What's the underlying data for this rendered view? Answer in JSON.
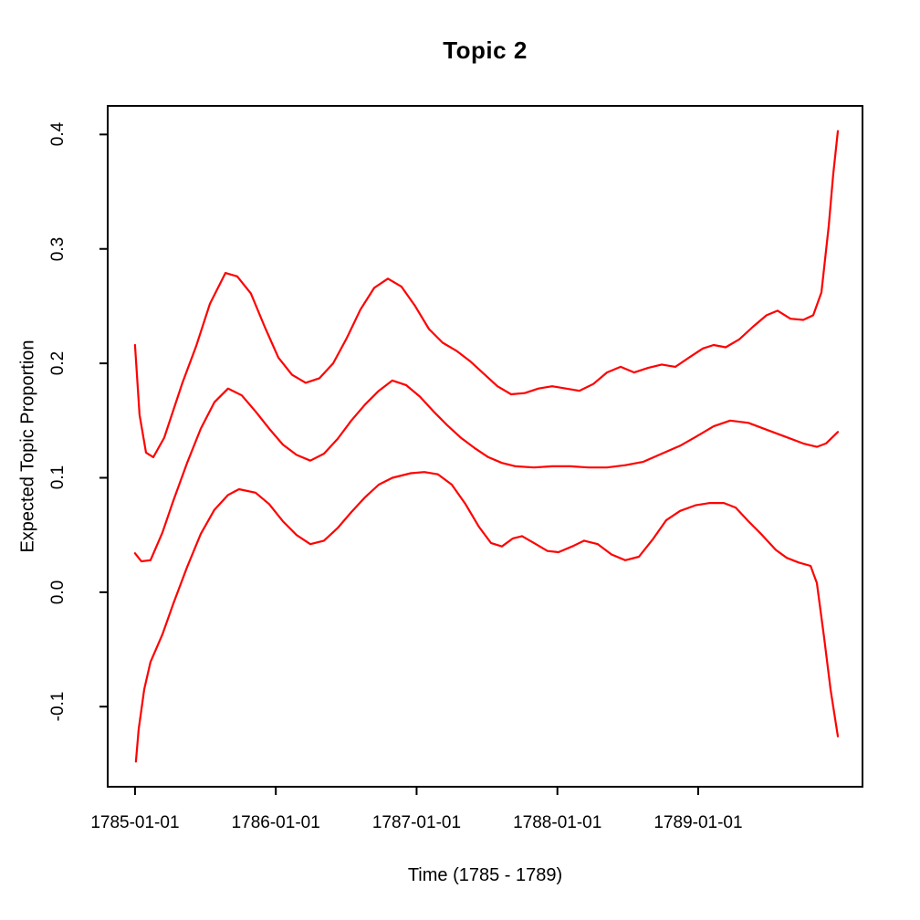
{
  "figure": {
    "background": "#FFFFFF"
  },
  "chart_data": {
    "type": "line",
    "title": "Topic 2",
    "xlabel": "Time (1785 - 1789)",
    "ylabel": "Expected Topic Proportion",
    "grid": false,
    "legend": null,
    "line_color": "#FF0000",
    "axis_color": "#000000",
    "x_axis": {
      "tick_labels": [
        "1785-01-01",
        "1786-01-01",
        "1787-01-01",
        "1788-01-01",
        "1789-01-01"
      ],
      "tick_years": [
        1785,
        1786,
        1787,
        1788,
        1789
      ],
      "range": [
        1784.806,
        1790.167
      ]
    },
    "y_axis": {
      "tick_labels": [
        "-0.1",
        "0.0",
        "0.1",
        "0.2",
        "0.3",
        "0.4"
      ],
      "tick_values": [
        -0.1,
        0.0,
        0.1,
        0.2,
        0.3,
        0.4
      ],
      "range": [
        -0.17,
        0.425
      ]
    },
    "series": [
      {
        "name": "upper-confidence-band",
        "x": [
          1785.0,
          1785.032,
          1785.078,
          1785.13,
          1785.207,
          1785.337,
          1785.434,
          1785.532,
          1785.642,
          1785.726,
          1785.823,
          1785.921,
          1786.018,
          1786.115,
          1786.212,
          1786.31,
          1786.407,
          1786.504,
          1786.601,
          1786.699,
          1786.796,
          1786.893,
          1786.99,
          1787.088,
          1787.185,
          1787.282,
          1787.379,
          1787.477,
          1787.574,
          1787.671,
          1787.768,
          1787.866,
          1787.963,
          1788.06,
          1788.157,
          1788.255,
          1788.352,
          1788.449,
          1788.546,
          1788.644,
          1788.741,
          1788.838,
          1788.935,
          1789.033,
          1789.11,
          1789.195,
          1789.292,
          1789.389,
          1789.486,
          1789.564,
          1789.655,
          1789.746,
          1789.817,
          1789.875,
          1789.927,
          1789.959,
          1789.992
        ],
        "y": [
          0.216,
          0.155,
          0.122,
          0.118,
          0.135,
          0.183,
          0.215,
          0.252,
          0.279,
          0.276,
          0.261,
          0.232,
          0.205,
          0.19,
          0.183,
          0.187,
          0.2,
          0.222,
          0.247,
          0.266,
          0.274,
          0.267,
          0.25,
          0.23,
          0.218,
          0.211,
          0.202,
          0.191,
          0.18,
          0.173,
          0.174,
          0.178,
          0.18,
          0.178,
          0.176,
          0.182,
          0.192,
          0.197,
          0.192,
          0.196,
          0.199,
          0.197,
          0.205,
          0.213,
          0.216,
          0.214,
          0.221,
          0.232,
          0.242,
          0.246,
          0.239,
          0.238,
          0.242,
          0.262,
          0.32,
          0.365,
          0.403
        ]
      },
      {
        "name": "estimate",
        "x": [
          1785.0,
          1785.045,
          1785.11,
          1785.194,
          1785.272,
          1785.37,
          1785.467,
          1785.564,
          1785.661,
          1785.758,
          1785.856,
          1785.953,
          1786.05,
          1786.147,
          1786.245,
          1786.342,
          1786.439,
          1786.536,
          1786.634,
          1786.731,
          1786.828,
          1786.925,
          1787.023,
          1787.12,
          1787.217,
          1787.314,
          1787.412,
          1787.509,
          1787.606,
          1787.703,
          1787.833,
          1787.963,
          1788.093,
          1788.222,
          1788.352,
          1788.482,
          1788.611,
          1788.741,
          1788.871,
          1789.0,
          1789.11,
          1789.227,
          1789.357,
          1789.486,
          1789.616,
          1789.746,
          1789.843,
          1789.908,
          1789.992
        ],
        "y": [
          0.034,
          0.027,
          0.028,
          0.052,
          0.08,
          0.113,
          0.143,
          0.166,
          0.178,
          0.172,
          0.158,
          0.143,
          0.129,
          0.12,
          0.115,
          0.121,
          0.134,
          0.15,
          0.164,
          0.176,
          0.185,
          0.181,
          0.171,
          0.158,
          0.146,
          0.135,
          0.126,
          0.118,
          0.113,
          0.11,
          0.109,
          0.11,
          0.11,
          0.109,
          0.109,
          0.111,
          0.114,
          0.121,
          0.128,
          0.137,
          0.145,
          0.15,
          0.148,
          0.142,
          0.136,
          0.13,
          0.127,
          0.13,
          0.14
        ]
      },
      {
        "name": "lower-confidence-band",
        "x": [
          1785.006,
          1785.026,
          1785.065,
          1785.11,
          1785.194,
          1785.272,
          1785.37,
          1785.467,
          1785.564,
          1785.661,
          1785.739,
          1785.856,
          1785.953,
          1786.05,
          1786.147,
          1786.245,
          1786.342,
          1786.439,
          1786.536,
          1786.634,
          1786.731,
          1786.828,
          1786.958,
          1787.055,
          1787.152,
          1787.25,
          1787.347,
          1787.444,
          1787.528,
          1787.606,
          1787.684,
          1787.749,
          1787.833,
          1787.93,
          1788.008,
          1788.105,
          1788.19,
          1788.287,
          1788.384,
          1788.482,
          1788.579,
          1788.676,
          1788.773,
          1788.871,
          1788.981,
          1789.084,
          1789.182,
          1789.266,
          1789.357,
          1789.454,
          1789.551,
          1789.629,
          1789.713,
          1789.798,
          1789.843,
          1789.895,
          1789.94,
          1789.992
        ],
        "y": [
          -0.148,
          -0.12,
          -0.085,
          -0.061,
          -0.037,
          -0.01,
          0.022,
          0.051,
          0.072,
          0.085,
          0.09,
          0.087,
          0.077,
          0.062,
          0.05,
          0.042,
          0.045,
          0.056,
          0.07,
          0.083,
          0.094,
          0.1,
          0.104,
          0.105,
          0.103,
          0.094,
          0.077,
          0.057,
          0.043,
          0.04,
          0.047,
          0.049,
          0.043,
          0.036,
          0.035,
          0.04,
          0.045,
          0.042,
          0.033,
          0.028,
          0.031,
          0.046,
          0.063,
          0.071,
          0.076,
          0.078,
          0.078,
          0.074,
          0.062,
          0.05,
          0.037,
          0.03,
          0.026,
          0.023,
          0.008,
          -0.04,
          -0.085,
          -0.126
        ]
      }
    ]
  }
}
